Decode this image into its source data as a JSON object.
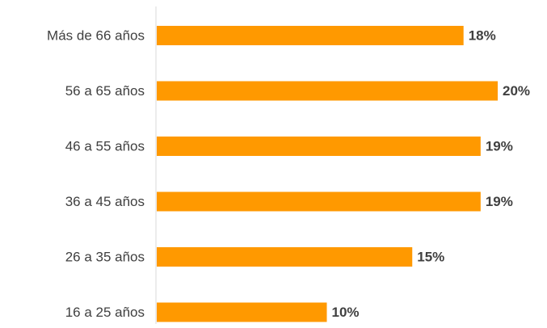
{
  "chart_data": {
    "type": "bar",
    "orientation": "horizontal",
    "categories": [
      "Más de 66 años",
      "56 a 65 años",
      "46 a 55 años",
      "36 a 45 años",
      "26 a 35 años",
      "16 a 25 años"
    ],
    "values": [
      18,
      20,
      19,
      19,
      15,
      10
    ],
    "value_labels": [
      "18%",
      "20%",
      "19%",
      "19%",
      "15%",
      "10%"
    ],
    "title": "",
    "xlabel": "",
    "ylabel": "",
    "xlim": [
      0,
      20
    ],
    "grid": false,
    "legend": "none",
    "bar_color": "#FF9900",
    "axis_color": "#d9d9d9",
    "text_color": "#404040"
  }
}
